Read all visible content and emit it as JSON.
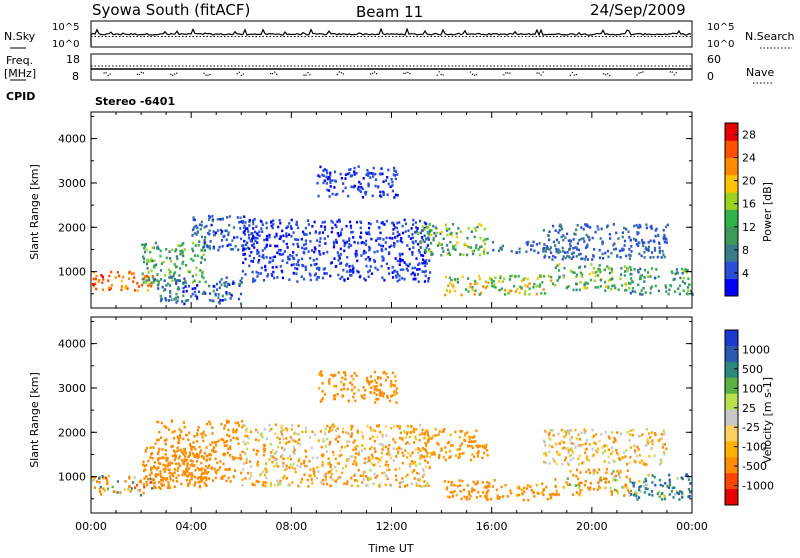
{
  "header": {
    "station": "Syowa South (fitACF)",
    "beam": "Beam 11",
    "date": "24/Sep/2009"
  },
  "panels": {
    "nsky": {
      "left_label": "N.Sky",
      "right_label": "N.Search",
      "tick_high": "10^5",
      "tick_low": "10^0"
    },
    "freq": {
      "left_label_1": "Freq.",
      "left_label_2": "[MHz]",
      "right_label": "Nave",
      "left_ticks": [
        "18",
        "8"
      ],
      "right_ticks": [
        "60",
        "0"
      ]
    },
    "cpid": {
      "label": "CPID",
      "value": "Stereo -6401"
    }
  },
  "colors": {
    "power_scale": [
      "#0000ff",
      "#2a4fd8",
      "#3a7d8a",
      "#3c9a5a",
      "#2fb34a",
      "#9ad21e",
      "#ffc400",
      "#ff8a00",
      "#ff5000",
      "#e60000"
    ],
    "velocity_scale": [
      "#e60000",
      "#ff4500",
      "#ff8c00",
      "#ffb000",
      "#ffd060",
      "#c8c8c8",
      "#b8e050",
      "#5ab040",
      "#2c8a7a",
      "#2a5ab0",
      "#1a3ad0"
    ]
  },
  "chart_data": [
    {
      "type": "heatmap",
      "name": "power",
      "xlabel": "Time UT",
      "ylabel": "Slant Range [km]",
      "xticks": [
        "00:00",
        "04:00",
        "08:00",
        "12:00",
        "16:00",
        "20:00",
        "00:00"
      ],
      "xlim_hours": [
        0,
        24
      ],
      "ylim": [
        180,
        4600
      ],
      "yticks": [
        1000,
        2000,
        3000,
        4000
      ],
      "colorbar": {
        "label": "Power [dB]",
        "ticks": [
          4,
          8,
          12,
          16,
          20,
          24,
          28
        ],
        "range": [
          0,
          30
        ]
      },
      "regions": [
        {
          "t": [
            0.0,
            2.5
          ],
          "r": [
            600,
            1050
          ],
          "v": [
            20,
            28
          ]
        },
        {
          "t": [
            2.0,
            4.6
          ],
          "r": [
            750,
            1700
          ],
          "v": [
            6,
            18
          ]
        },
        {
          "t": [
            2.5,
            6.0
          ],
          "r": [
            300,
            900
          ],
          "v": [
            2,
            10
          ]
        },
        {
          "t": [
            4.0,
            6.5
          ],
          "r": [
            1500,
            2300
          ],
          "v": [
            2,
            8
          ]
        },
        {
          "t": [
            9.0,
            12.2
          ],
          "r": [
            2700,
            3400
          ],
          "v": [
            2,
            6
          ]
        },
        {
          "t": [
            6.0,
            13.5
          ],
          "r": [
            800,
            2200
          ],
          "v": [
            2,
            5
          ]
        },
        {
          "t": [
            13.0,
            15.8
          ],
          "r": [
            1400,
            2100
          ],
          "v": [
            6,
            20
          ]
        },
        {
          "t": [
            14.0,
            18.5
          ],
          "r": [
            500,
            950
          ],
          "v": [
            10,
            24
          ]
        },
        {
          "t": [
            16.0,
            19.0
          ],
          "r": [
            1450,
            1700
          ],
          "v": [
            4,
            8
          ]
        },
        {
          "t": [
            18.5,
            21.5
          ],
          "r": [
            600,
            1200
          ],
          "v": [
            6,
            20
          ]
        },
        {
          "t": [
            21.5,
            24.0
          ],
          "r": [
            500,
            1100
          ],
          "v": [
            4,
            16
          ]
        },
        {
          "t": [
            18.0,
            23.0
          ],
          "r": [
            1300,
            2100
          ],
          "v": [
            3,
            8
          ]
        }
      ]
    },
    {
      "type": "heatmap",
      "name": "velocity",
      "xlabel": "Time UT",
      "ylabel": "Slant Range [km]",
      "xticks": [
        "00:00",
        "04:00",
        "08:00",
        "12:00",
        "16:00",
        "20:00",
        "00:00"
      ],
      "xlim_hours": [
        0,
        24
      ],
      "ylim": [
        180,
        4600
      ],
      "yticks": [
        1000,
        2000,
        3000,
        4000
      ],
      "colorbar": {
        "label": "Velocity [m s-1]",
        "ticks": [
          "1000",
          "500",
          "100",
          "25",
          "-25",
          "-100",
          "-500",
          "-1000"
        ]
      },
      "regions": [
        {
          "t": [
            0.0,
            2.5
          ],
          "r": [
            600,
            1050
          ],
          "v": [
            -600,
            300
          ]
        },
        {
          "t": [
            2.0,
            4.6
          ],
          "r": [
            750,
            1700
          ],
          "v": [
            -300,
            -100
          ]
        },
        {
          "t": [
            2.5,
            6.0
          ],
          "r": [
            900,
            2300
          ],
          "v": [
            -300,
            -100
          ]
        },
        {
          "t": [
            9.0,
            12.2
          ],
          "r": [
            2700,
            3400
          ],
          "v": [
            -300,
            -80
          ]
        },
        {
          "t": [
            6.0,
            13.5
          ],
          "r": [
            800,
            2200
          ],
          "v": [
            -200,
            50
          ]
        },
        {
          "t": [
            13.0,
            15.8
          ],
          "r": [
            1400,
            2100
          ],
          "v": [
            -300,
            -50
          ]
        },
        {
          "t": [
            14.0,
            18.5
          ],
          "r": [
            500,
            950
          ],
          "v": [
            -400,
            -50
          ]
        },
        {
          "t": [
            18.5,
            21.5
          ],
          "r": [
            600,
            1200
          ],
          "v": [
            -400,
            100
          ]
        },
        {
          "t": [
            21.5,
            24.0
          ],
          "r": [
            500,
            1100
          ],
          "v": [
            -100,
            700
          ]
        },
        {
          "t": [
            18.0,
            23.0
          ],
          "r": [
            1300,
            2100
          ],
          "v": [
            -150,
            50
          ]
        }
      ]
    }
  ]
}
